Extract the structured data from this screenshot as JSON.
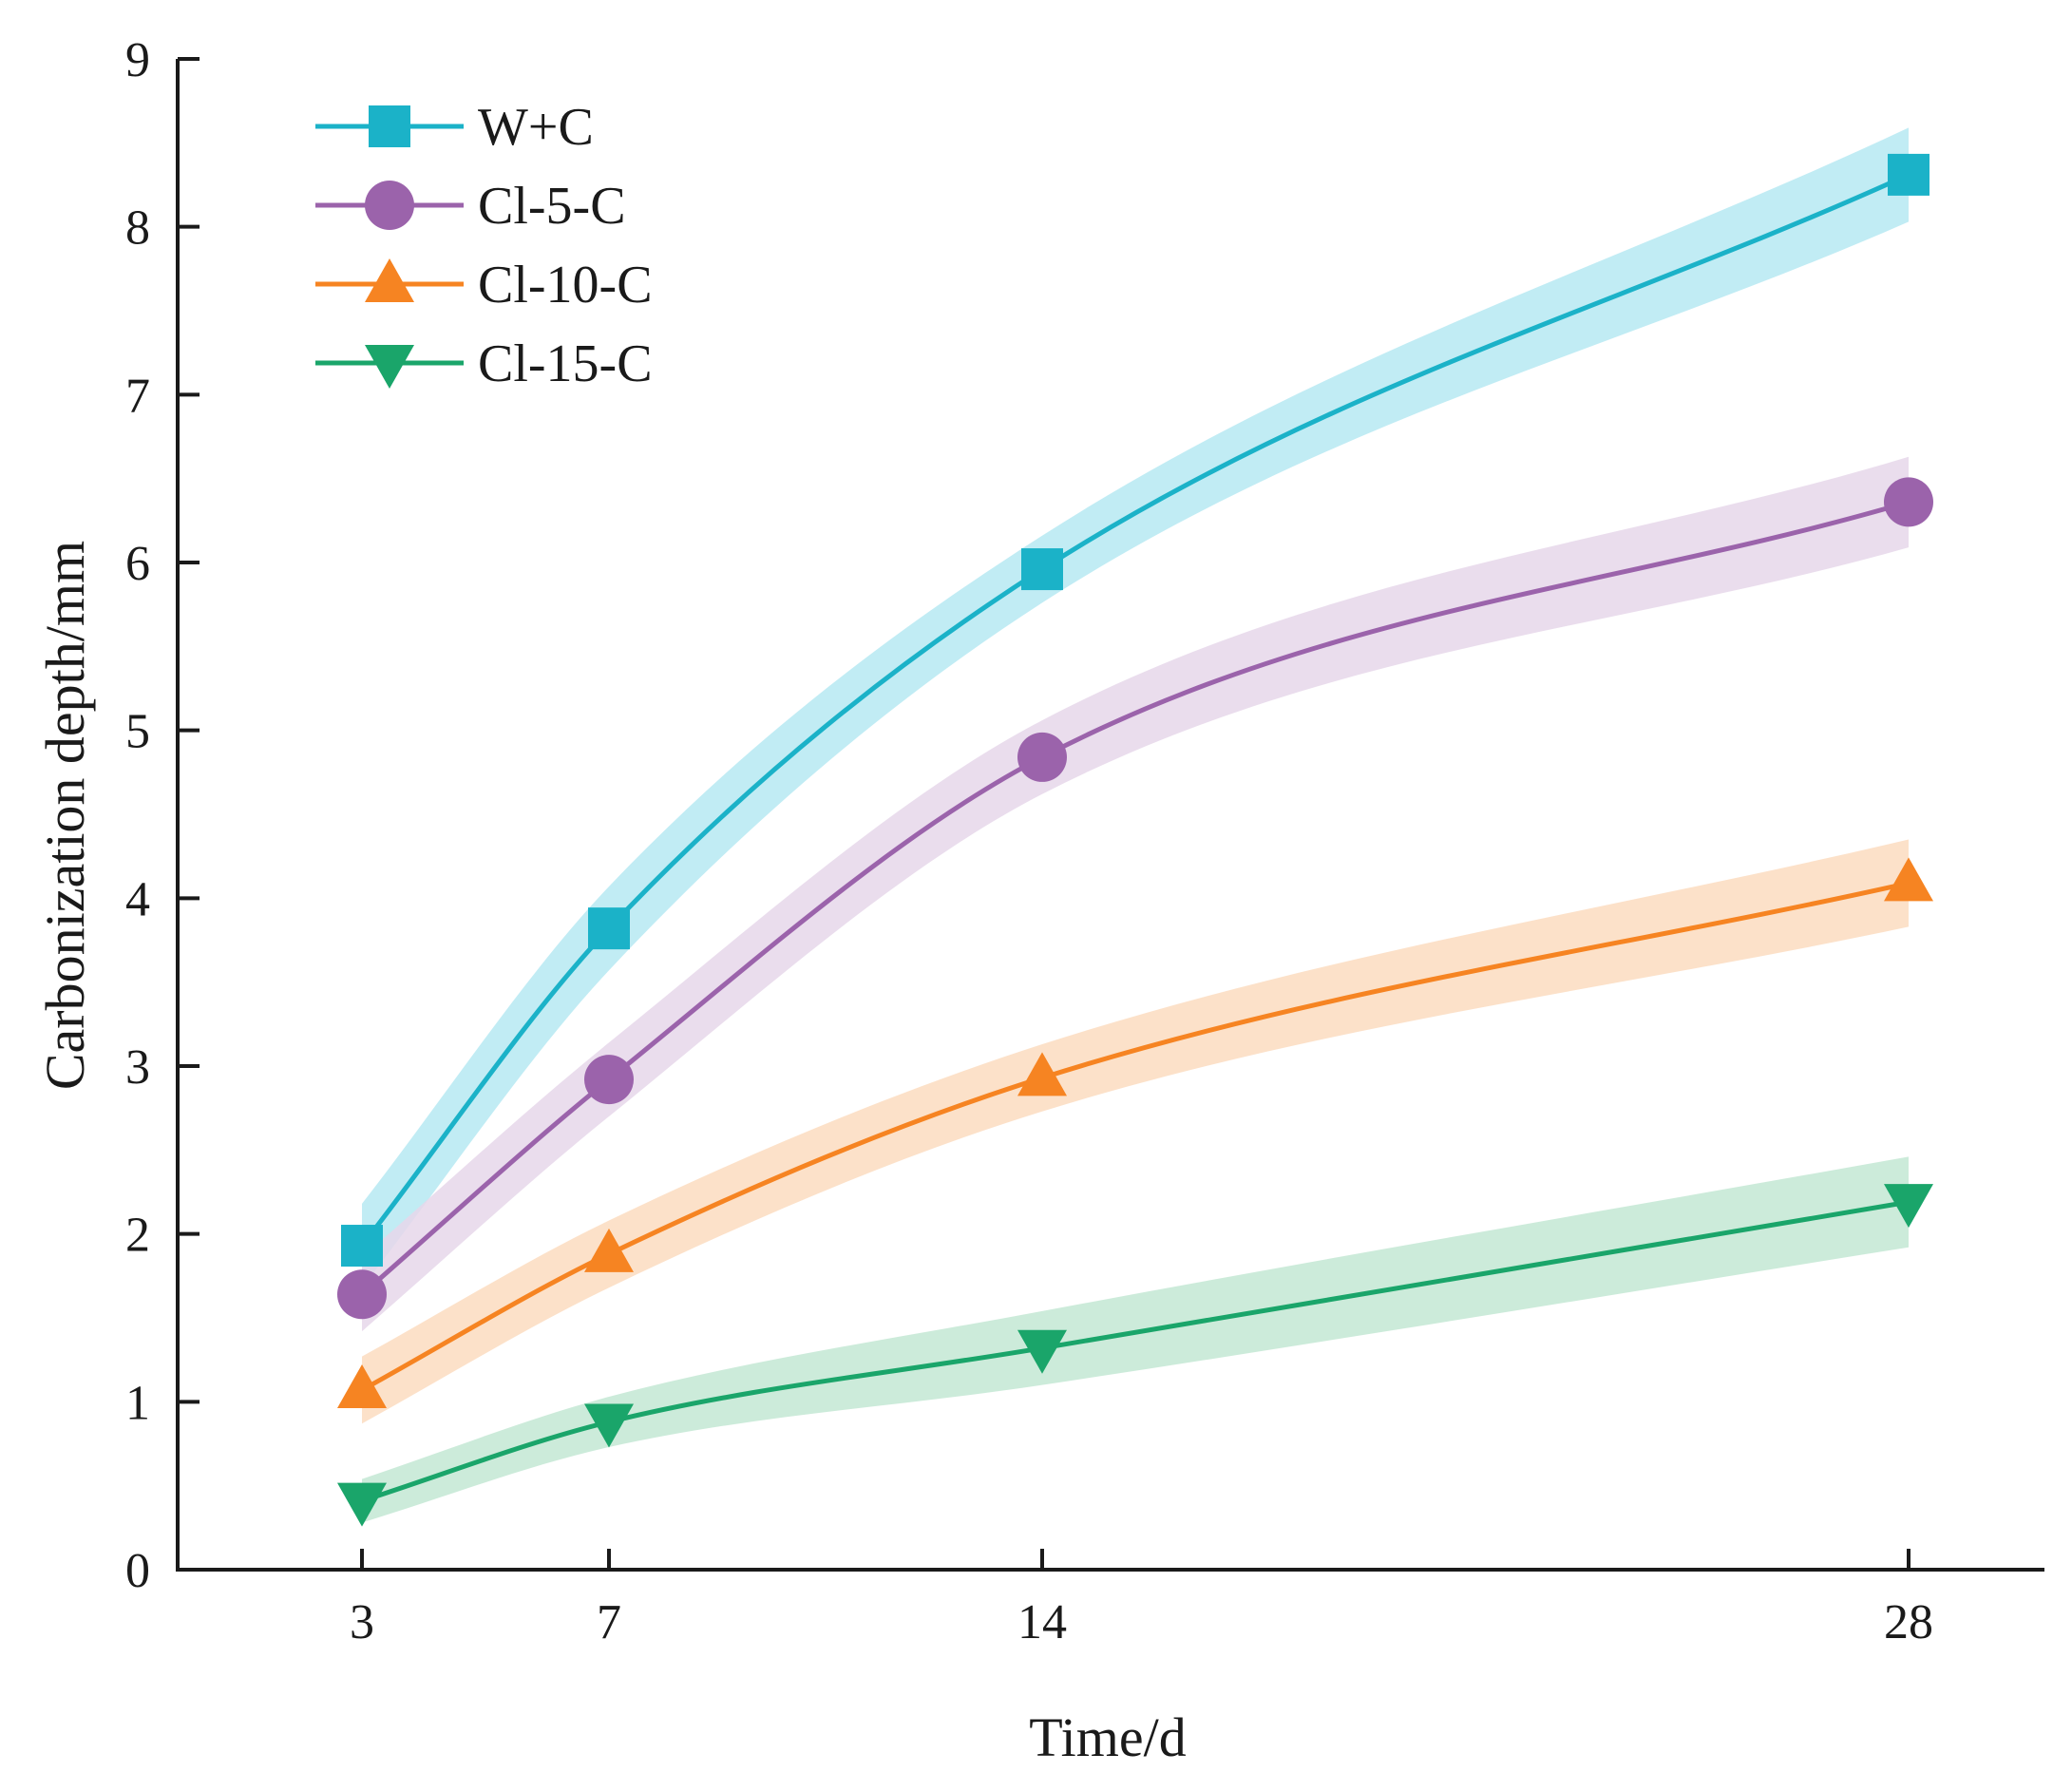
{
  "chart_data": {
    "type": "line",
    "title": "",
    "xlabel": "Time/d",
    "ylabel": "Carbonization depth/mm",
    "x": [
      3,
      7,
      14,
      28
    ],
    "x_tick_labels": [
      "3",
      "7",
      "14",
      "28"
    ],
    "y_tick_labels": [
      "0",
      "1",
      "2",
      "3",
      "4",
      "5",
      "6",
      "7",
      "8",
      "9"
    ],
    "ylim": [
      0,
      9
    ],
    "grid": false,
    "legend_position": "top-left",
    "series": [
      {
        "name": "W+C",
        "values": [
          1.93,
          3.82,
          5.96,
          8.31
        ],
        "band": [
          0.25,
          0.25,
          0.2,
          0.28
        ],
        "color": "#1bb2c8",
        "band_color": "#b6e9f2",
        "marker": "square"
      },
      {
        "name": "Cl-5-C",
        "values": [
          1.64,
          2.92,
          4.84,
          6.36
        ],
        "band": [
          0.22,
          0.22,
          0.22,
          0.27
        ],
        "color": "#9b63ab",
        "band_color": "#e6d7ea",
        "marker": "circle"
      },
      {
        "name": "Cl-10-C",
        "values": [
          1.07,
          1.88,
          2.93,
          4.09
        ],
        "band": [
          0.2,
          0.2,
          0.2,
          0.26
        ],
        "color": "#f68422",
        "band_color": "#fbdcc0",
        "marker": "triangle-up"
      },
      {
        "name": "Cl-15-C",
        "values": [
          0.41,
          0.88,
          1.32,
          2.19
        ],
        "band": [
          0.13,
          0.15,
          0.22,
          0.27
        ],
        "color": "#1aa56a",
        "band_color": "#c3e8d4",
        "marker": "triangle-down"
      }
    ]
  }
}
